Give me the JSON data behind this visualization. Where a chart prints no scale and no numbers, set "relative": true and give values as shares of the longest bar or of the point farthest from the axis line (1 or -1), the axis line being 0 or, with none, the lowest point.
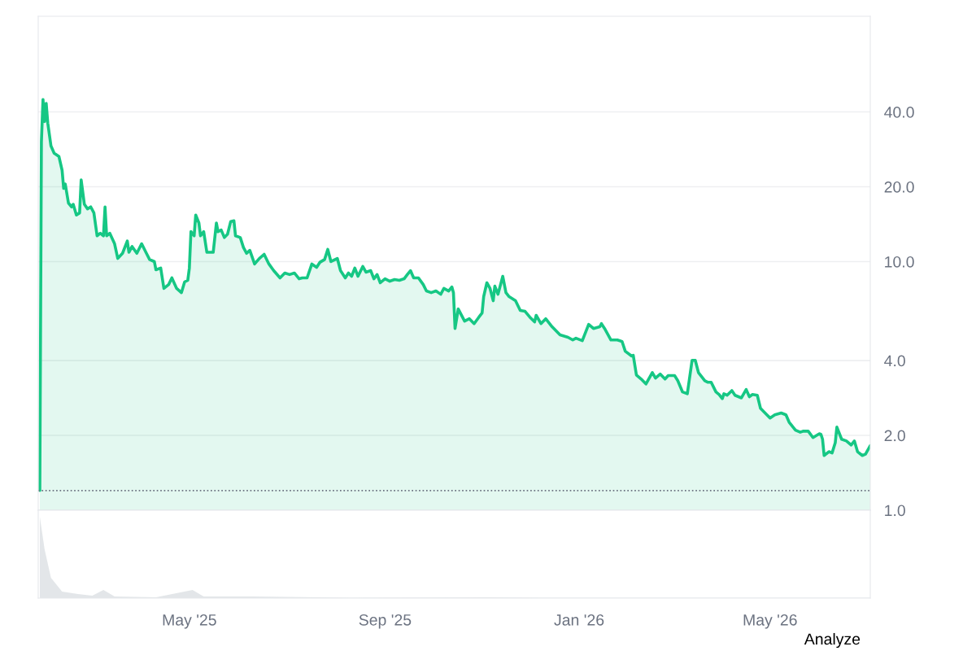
{
  "chart_data": [
    {
      "type": "area",
      "x": [
        "2025-01-27",
        "2025-01-28",
        "2025-01-29",
        "2025-01-30",
        "2025-01-31",
        "2025-02-01",
        "2025-02-03",
        "2025-02-05",
        "2025-02-08",
        "2025-02-10",
        "2025-02-11",
        "2025-02-12",
        "2025-02-14",
        "2025-02-16",
        "2025-02-17",
        "2025-02-19",
        "2025-02-21",
        "2025-02-22",
        "2025-02-24",
        "2025-02-26",
        "2025-02-28",
        "2025-03-02",
        "2025-03-04",
        "2025-03-06",
        "2025-03-08",
        "2025-03-09",
        "2025-03-10",
        "2025-03-12",
        "2025-03-15",
        "2025-03-17",
        "2025-03-20",
        "2025-03-23",
        "2025-03-24",
        "2025-03-26",
        "2025-03-29",
        "2025-04-01",
        "2025-04-04",
        "2025-04-06",
        "2025-04-09",
        "2025-04-10",
        "2025-04-13",
        "2025-04-15",
        "2025-04-18",
        "2025-04-20",
        "2025-04-23",
        "2025-04-26",
        "2025-04-28",
        "2025-04-30",
        "2025-05-01",
        "2025-05-02",
        "2025-05-04",
        "2025-05-05",
        "2025-05-07",
        "2025-05-08",
        "2025-05-10",
        "2025-05-12",
        "2025-05-14",
        "2025-05-16",
        "2025-05-18",
        "2025-05-19",
        "2025-05-21",
        "2025-05-23",
        "2025-05-25",
        "2025-05-27",
        "2025-05-29",
        "2025-05-30",
        "2025-06-02",
        "2025-06-04",
        "2025-06-06",
        "2025-06-08",
        "2025-06-11",
        "2025-06-14",
        "2025-06-17",
        "2025-06-20",
        "2025-06-23",
        "2025-06-27",
        "2025-06-30",
        "2025-07-03",
        "2025-07-06",
        "2025-07-09",
        "2025-07-11",
        "2025-07-14",
        "2025-07-17",
        "2025-07-20",
        "2025-07-22",
        "2025-07-25",
        "2025-07-27",
        "2025-07-29",
        "2025-08-02",
        "2025-08-04",
        "2025-08-07",
        "2025-08-09",
        "2025-08-11",
        "2025-08-13",
        "2025-08-15",
        "2025-08-18",
        "2025-08-20",
        "2025-08-23",
        "2025-08-25",
        "2025-08-27",
        "2025-08-29",
        "2025-09-01",
        "2025-09-04",
        "2025-09-07",
        "2025-09-10",
        "2025-09-13",
        "2025-09-15",
        "2025-09-17",
        "2025-09-19",
        "2025-09-22",
        "2025-09-25",
        "2025-09-27",
        "2025-09-30",
        "2025-10-03",
        "2025-10-06",
        "2025-10-08",
        "2025-10-11",
        "2025-10-13",
        "2025-10-14",
        "2025-10-15",
        "2025-10-17",
        "2025-10-21",
        "2025-10-24",
        "2025-10-27",
        "2025-10-30",
        "2025-11-01",
        "2025-11-02",
        "2025-11-04",
        "2025-11-06",
        "2025-11-08",
        "2025-11-09",
        "2025-11-11",
        "2025-11-14",
        "2025-11-16",
        "2025-11-18",
        "2025-11-22",
        "2025-11-25",
        "2025-11-28",
        "2025-12-01",
        "2025-12-04",
        "2025-12-05",
        "2025-12-08",
        "2025-12-11",
        "2025-12-15",
        "2025-12-20",
        "2025-12-25",
        "2025-12-28",
        "2025-12-30",
        "2026-01-03",
        "2026-01-07",
        "2026-01-10",
        "2026-01-14",
        "2026-01-15",
        "2026-01-17",
        "2026-01-21",
        "2026-01-25",
        "2026-01-28",
        "2026-01-30",
        "2026-02-03",
        "2026-02-04",
        "2026-02-06",
        "2026-02-09",
        "2026-02-12",
        "2026-02-16",
        "2026-02-18",
        "2026-02-21",
        "2026-02-24",
        "2026-02-26",
        "2026-03-02",
        "2026-03-04",
        "2026-03-07",
        "2026-03-10",
        "2026-03-13",
        "2026-03-15",
        "2026-03-17",
        "2026-03-21",
        "2026-03-23",
        "2026-03-25",
        "2026-03-28",
        "2026-03-30",
        "2026-04-01",
        "2026-04-02",
        "2026-04-04",
        "2026-04-07",
        "2026-04-09",
        "2026-04-13",
        "2026-04-16",
        "2026-04-18",
        "2026-04-20",
        "2026-04-23",
        "2026-04-25",
        "2026-04-29",
        "2026-05-01",
        "2026-05-04",
        "2026-05-08",
        "2026-05-11",
        "2026-05-13",
        "2026-05-17",
        "2026-05-20",
        "2026-05-22",
        "2026-05-25",
        "2026-05-28",
        "2026-06-01",
        "2026-06-02",
        "2026-06-03",
        "2026-06-04",
        "2026-06-07",
        "2026-06-09",
        "2026-06-11",
        "2026-06-12",
        "2026-06-15",
        "2026-06-18",
        "2026-06-21",
        "2026-06-23",
        "2026-06-25",
        "2026-06-28",
        "2026-06-30",
        "2026-07-03"
      ],
      "series": [
        {
          "color": "#16c784",
          "values": [
            1.2,
            30.3,
            44.9,
            36.6,
            43.3,
            36.1,
            29.2,
            27.3,
            26.5,
            23.3,
            19.7,
            20.5,
            17.2,
            16.6,
            17.0,
            15.4,
            15.7,
            21.3,
            17.0,
            16.3,
            16.6,
            15.7,
            12.7,
            13.0,
            12.7,
            16.6,
            12.7,
            13.0,
            11.8,
            10.3,
            10.8,
            12.1,
            10.9,
            11.5,
            10.8,
            11.8,
            10.8,
            10.2,
            10.0,
            9.27,
            9.42,
            7.8,
            8.09,
            8.6,
            7.8,
            7.5,
            8.28,
            8.41,
            9.42,
            13.2,
            12.7,
            15.4,
            14.3,
            12.7,
            13.2,
            10.9,
            10.9,
            10.9,
            14.3,
            13.2,
            13.4,
            12.5,
            12.9,
            14.5,
            14.6,
            12.7,
            12.5,
            11.4,
            10.8,
            11.1,
            9.78,
            10.3,
            10.7,
            9.78,
            9.2,
            8.6,
            9.0,
            8.87,
            9.0,
            8.53,
            8.6,
            8.6,
            9.78,
            9.48,
            9.93,
            10.2,
            11.2,
            10.0,
            10.3,
            9.2,
            8.6,
            9.0,
            8.73,
            9.42,
            8.73,
            9.56,
            9.07,
            9.2,
            8.53,
            8.87,
            8.22,
            8.53,
            8.34,
            8.47,
            8.41,
            8.53,
            8.87,
            9.2,
            8.6,
            8.6,
            8.09,
            7.62,
            7.5,
            7.62,
            7.39,
            7.8,
            7.62,
            7.91,
            7.5,
            5.38,
            6.45,
            5.76,
            5.89,
            5.63,
            5.98,
            6.21,
            7.23,
            8.22,
            7.8,
            6.96,
            7.97,
            7.39,
            8.73,
            7.5,
            7.23,
            6.96,
            6.36,
            6.31,
            5.98,
            5.72,
            6.08,
            5.63,
            5.89,
            5.47,
            5.07,
            4.96,
            4.84,
            4.92,
            4.81,
            5.59,
            5.38,
            5.47,
            5.63,
            5.38,
            4.84,
            4.84,
            4.77,
            4.36,
            4.17,
            4.2,
            3.5,
            3.37,
            3.22,
            3.58,
            3.4,
            3.53,
            3.37,
            3.48,
            3.48,
            3.32,
            2.99,
            2.94,
            4.01,
            4.01,
            3.58,
            3.32,
            3.27,
            3.27,
            2.99,
            2.92,
            2.81,
            2.94,
            2.9,
            3.03,
            2.9,
            2.83,
            3.06,
            2.86,
            2.92,
            2.9,
            2.57,
            2.42,
            2.35,
            2.42,
            2.46,
            2.42,
            2.26,
            2.1,
            2.06,
            2.08,
            2.08,
            1.96,
            2.03,
            2.02,
            1.93,
            1.66,
            1.72,
            1.7,
            1.87,
            2.16,
            1.93,
            1.9,
            1.83,
            1.9,
            1.72,
            1.66,
            1.68,
            1.82
          ]
        }
      ],
      "xlim": [
        "2025-01-26",
        "2026-07-03"
      ],
      "log": true,
      "ylim": [
        1.0,
        97
      ],
      "yticks": [
        {
          "value": 1,
          "label": "1.0"
        },
        {
          "value": 2,
          "label": "2.0"
        },
        {
          "value": 4,
          "label": "4.0"
        },
        {
          "value": 10,
          "label": "10.0"
        },
        {
          "value": 20,
          "label": "20.0"
        },
        {
          "value": 40,
          "label": "40.0"
        }
      ],
      "grid": "y",
      "tick_labels": "y",
      "line_style": "solid",
      "ref_lines": [
        {
          "axis": "y",
          "value": 1.2,
          "color": "#6b7280",
          "line_style": "dotted"
        }
      ]
    },
    {
      "type": "area",
      "relative": true,
      "x": [
        "2025-01-27",
        "2025-01-30",
        "2025-02-03",
        "2025-02-10",
        "2025-02-20",
        "2025-03-01",
        "2025-03-08",
        "2025-03-15",
        "2025-04-10",
        "2025-05-03",
        "2025-05-10",
        "2025-06-10",
        "2025-08-10",
        "2025-11-05",
        "2025-12-10",
        "2026-03-01",
        "2026-07-03"
      ],
      "series": [
        {
          "color": "#d1d5db",
          "values": [
            1.0,
            0.6,
            0.25,
            0.08,
            0.05,
            0.03,
            0.1,
            0.02,
            0.01,
            0.1,
            0.02,
            0.02,
            0.005,
            0.01,
            0.005,
            0.005,
            0.005
          ]
        }
      ],
      "xlim": [
        "2025-01-26",
        "2026-07-03"
      ],
      "xticks": [
        {
          "value": "2025-05-01",
          "label": "May '25"
        },
        {
          "value": "2025-09-01",
          "label": "Sep '25"
        },
        {
          "value": "2026-01-01",
          "label": "Jan '26"
        },
        {
          "value": "2026-05-01",
          "label": "May '26"
        }
      ],
      "tick_labels": "x",
      "annotations": [
        "Analyze"
      ]
    }
  ]
}
